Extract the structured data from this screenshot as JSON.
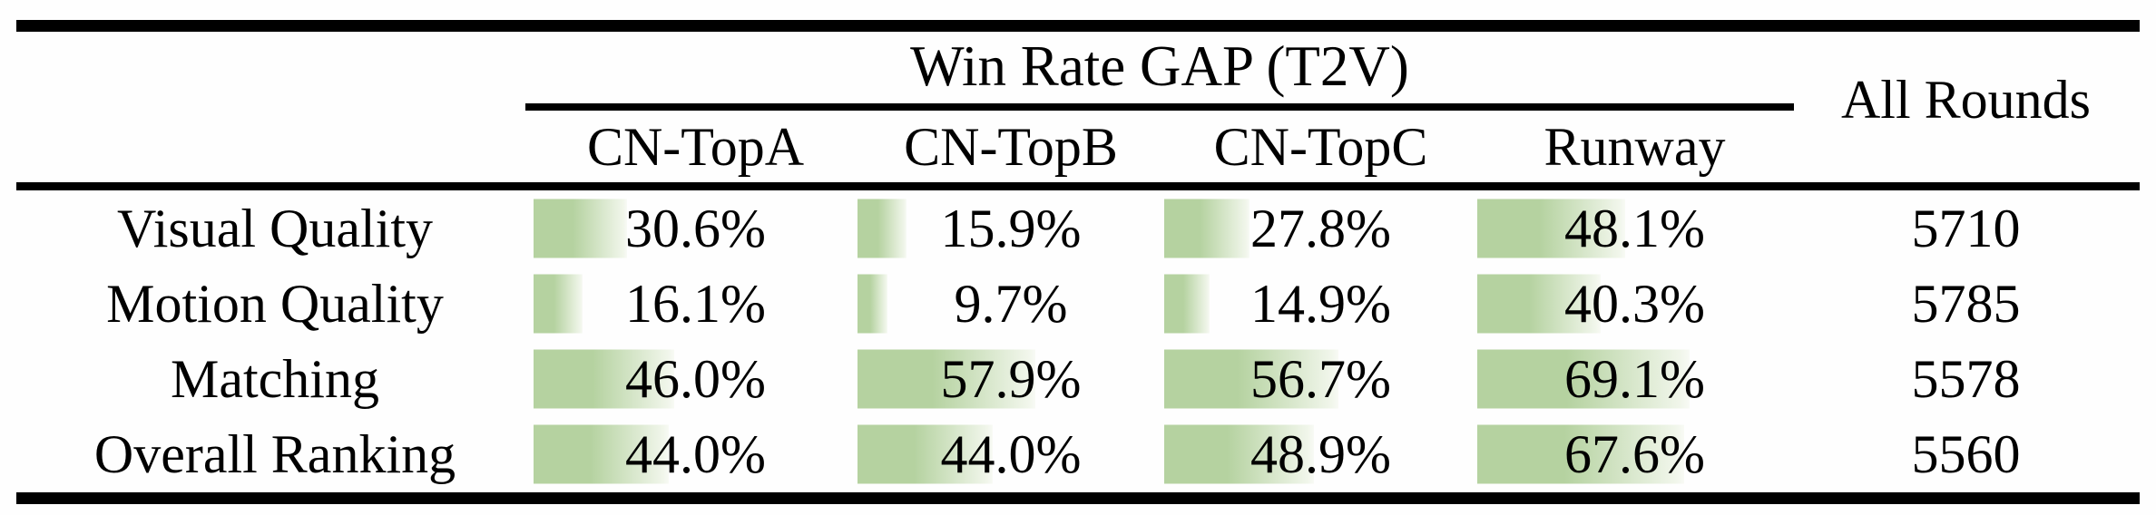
{
  "figure": {
    "background": "#fefefe",
    "text_color": "#000000",
    "rule_color": "#000000"
  },
  "table": {
    "group_header": "Win Rate GAP (T2V)",
    "side_header": "All Rounds",
    "columns": [
      "CN-TopA",
      "CN-TopB",
      "CN-TopC",
      "Runway"
    ],
    "rows": [
      {
        "label": "Visual Quality",
        "cells": [
          {
            "display": "30.6%",
            "value": 30.6
          },
          {
            "display": "15.9%",
            "value": 15.9
          },
          {
            "display": "27.8%",
            "value": 27.8
          },
          {
            "display": "48.1%",
            "value": 48.1
          }
        ],
        "all_rounds": "5710"
      },
      {
        "label": "Motion Quality",
        "cells": [
          {
            "display": "16.1%",
            "value": 16.1
          },
          {
            "display": "9.7%",
            "value": 9.7
          },
          {
            "display": "14.9%",
            "value": 14.9
          },
          {
            "display": "40.3%",
            "value": 40.3
          }
        ],
        "all_rounds": "5785"
      },
      {
        "label": "Matching",
        "cells": [
          {
            "display": "46.0%",
            "value": 46.0
          },
          {
            "display": "57.9%",
            "value": 57.9
          },
          {
            "display": "56.7%",
            "value": 56.7
          },
          {
            "display": "69.1%",
            "value": 69.1
          }
        ],
        "all_rounds": "5578"
      },
      {
        "label": "Overall Ranking",
        "cells": [
          {
            "display": "44.0%",
            "value": 44.0
          },
          {
            "display": "44.0%",
            "value": 44.0
          },
          {
            "display": "48.9%",
            "value": 48.9
          },
          {
            "display": "67.6%",
            "value": 67.6
          }
        ],
        "all_rounds": "5560"
      }
    ],
    "bar_colors": {
      "left": "#b5d2a0",
      "right": "#f1f6eb",
      "fade_end": "#f8faf5"
    }
  },
  "chart_data": {
    "type": "table",
    "title": "Win Rate GAP (T2V)",
    "columns": [
      "CN-TopA",
      "CN-TopB",
      "CN-TopC",
      "Runway",
      "All Rounds"
    ],
    "row_labels": [
      "Visual Quality",
      "Motion Quality",
      "Matching",
      "Overall Ranking"
    ],
    "win_rate_gap_percent": [
      [
        30.6,
        15.9,
        27.8,
        48.1
      ],
      [
        16.1,
        9.7,
        14.9,
        40.3
      ],
      [
        46.0,
        57.9,
        56.7,
        69.1
      ],
      [
        44.0,
        44.0,
        48.9,
        67.6
      ]
    ],
    "all_rounds": [
      5710,
      5785,
      5578,
      5560
    ],
    "bar_scale": "green gradient data bars, width proportional to percent, anchored at cell left"
  }
}
